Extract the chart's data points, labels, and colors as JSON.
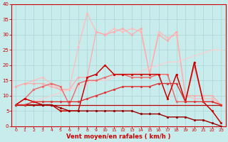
{
  "background_color": "#c8ecec",
  "grid_color": "#b0d8d8",
  "xlabel": "Vent moyen/en rafales ( km/h )",
  "xlabel_color": "#cc0000",
  "xlim": [
    -0.5,
    23.5
  ],
  "ylim": [
    0,
    40
  ],
  "xticks": [
    0,
    1,
    2,
    3,
    4,
    5,
    6,
    7,
    8,
    9,
    10,
    11,
    12,
    13,
    14,
    15,
    16,
    17,
    18,
    19,
    20,
    21,
    22,
    23
  ],
  "yticks": [
    0,
    5,
    10,
    15,
    20,
    25,
    30,
    35,
    40
  ],
  "lines": [
    {
      "x": [
        0,
        1,
        2,
        3,
        4,
        5,
        6,
        7,
        8,
        9,
        10,
        11,
        12,
        13,
        14,
        15,
        16,
        17,
        18,
        19,
        20,
        21,
        22,
        23
      ],
      "y": [
        13,
        14,
        15,
        16,
        14,
        12,
        12,
        26,
        37,
        31,
        30,
        32,
        31,
        32,
        31,
        17,
        31,
        29,
        30,
        10,
        9,
        9,
        9,
        7
      ],
      "color": "#ffbbbb",
      "lw": 0.9,
      "marker": "o",
      "ms": 2.0
    },
    {
      "x": [
        0,
        1,
        2,
        3,
        4,
        5,
        6,
        7,
        8,
        9,
        10,
        11,
        12,
        13,
        14,
        15,
        16,
        17,
        18,
        19,
        20,
        21,
        22,
        23
      ],
      "y": [
        13,
        14,
        14,
        14,
        13,
        12,
        12,
        16,
        16,
        31,
        30,
        31,
        32,
        30,
        32,
        17,
        30,
        28,
        31,
        10,
        10,
        10,
        10,
        7
      ],
      "color": "#ffaaaa",
      "lw": 0.9,
      "marker": "o",
      "ms": 2.0
    },
    {
      "x": [
        0,
        1,
        2,
        3,
        4,
        5,
        6,
        7,
        8,
        9,
        10,
        11,
        12,
        13,
        14,
        15,
        16,
        17,
        18,
        19,
        20,
        21,
        22,
        23
      ],
      "y": [
        7,
        7,
        8,
        9,
        10,
        11,
        12,
        13,
        14,
        15,
        15,
        16,
        17,
        17,
        18,
        19,
        20,
        21,
        21,
        22,
        23,
        24,
        25,
        25
      ],
      "color": "#ffcccc",
      "lw": 0.9,
      "marker": null,
      "ms": 0
    },
    {
      "x": [
        0,
        1,
        2,
        3,
        4,
        5,
        6,
        7,
        8,
        9,
        10,
        11,
        12,
        13,
        14,
        15,
        16,
        17,
        18,
        19,
        20,
        21,
        22,
        23
      ],
      "y": [
        7,
        9,
        12,
        13,
        14,
        13,
        7,
        14,
        15,
        15,
        16,
        17,
        17,
        16,
        16,
        16,
        17,
        17,
        8,
        8,
        20,
        8,
        8,
        7
      ],
      "color": "#ee6666",
      "lw": 1.0,
      "marker": "o",
      "ms": 2.0
    },
    {
      "x": [
        0,
        1,
        2,
        3,
        4,
        5,
        6,
        7,
        8,
        9,
        10,
        11,
        12,
        13,
        14,
        15,
        16,
        17,
        18,
        19,
        20,
        21,
        22,
        23
      ],
      "y": [
        7,
        9,
        8,
        7,
        7,
        5,
        5,
        5,
        16,
        17,
        20,
        17,
        17,
        17,
        17,
        17,
        17,
        9,
        17,
        8,
        21,
        8,
        5,
        1
      ],
      "color": "#cc0000",
      "lw": 1.1,
      "marker": "o",
      "ms": 2.0
    },
    {
      "x": [
        0,
        1,
        2,
        3,
        4,
        5,
        6,
        7,
        8,
        9,
        10,
        11,
        12,
        13,
        14,
        15,
        16,
        17,
        18,
        19,
        20,
        21,
        22,
        23
      ],
      "y": [
        7,
        7,
        7,
        7,
        7,
        7,
        7,
        7,
        7,
        7,
        7,
        7,
        7,
        7,
        7,
        7,
        7,
        7,
        7,
        7,
        7,
        7,
        7,
        7
      ],
      "color": "#bb0000",
      "lw": 0.9,
      "marker": null,
      "ms": 0
    },
    {
      "x": [
        0,
        1,
        2,
        3,
        4,
        5,
        6,
        7,
        8,
        9,
        10,
        11,
        12,
        13,
        14,
        15,
        16,
        17,
        18,
        19,
        20,
        21,
        22,
        23
      ],
      "y": [
        7,
        7,
        7,
        7,
        7,
        6,
        5,
        5,
        5,
        5,
        5,
        5,
        5,
        5,
        4,
        4,
        4,
        3,
        3,
        3,
        2,
        2,
        1,
        0
      ],
      "color": "#990000",
      "lw": 1.0,
      "marker": "o",
      "ms": 2.0
    },
    {
      "x": [
        0,
        1,
        2,
        3,
        4,
        5,
        6,
        7,
        8,
        9,
        10,
        11,
        12,
        13,
        14,
        15,
        16,
        17,
        18,
        19,
        20,
        21,
        22,
        23
      ],
      "y": [
        7,
        7,
        8,
        8,
        8,
        8,
        8,
        8,
        9,
        10,
        11,
        12,
        13,
        13,
        13,
        13,
        14,
        14,
        14,
        8,
        8,
        8,
        8,
        7
      ],
      "color": "#dd3333",
      "lw": 1.0,
      "marker": "o",
      "ms": 2.0
    }
  ]
}
